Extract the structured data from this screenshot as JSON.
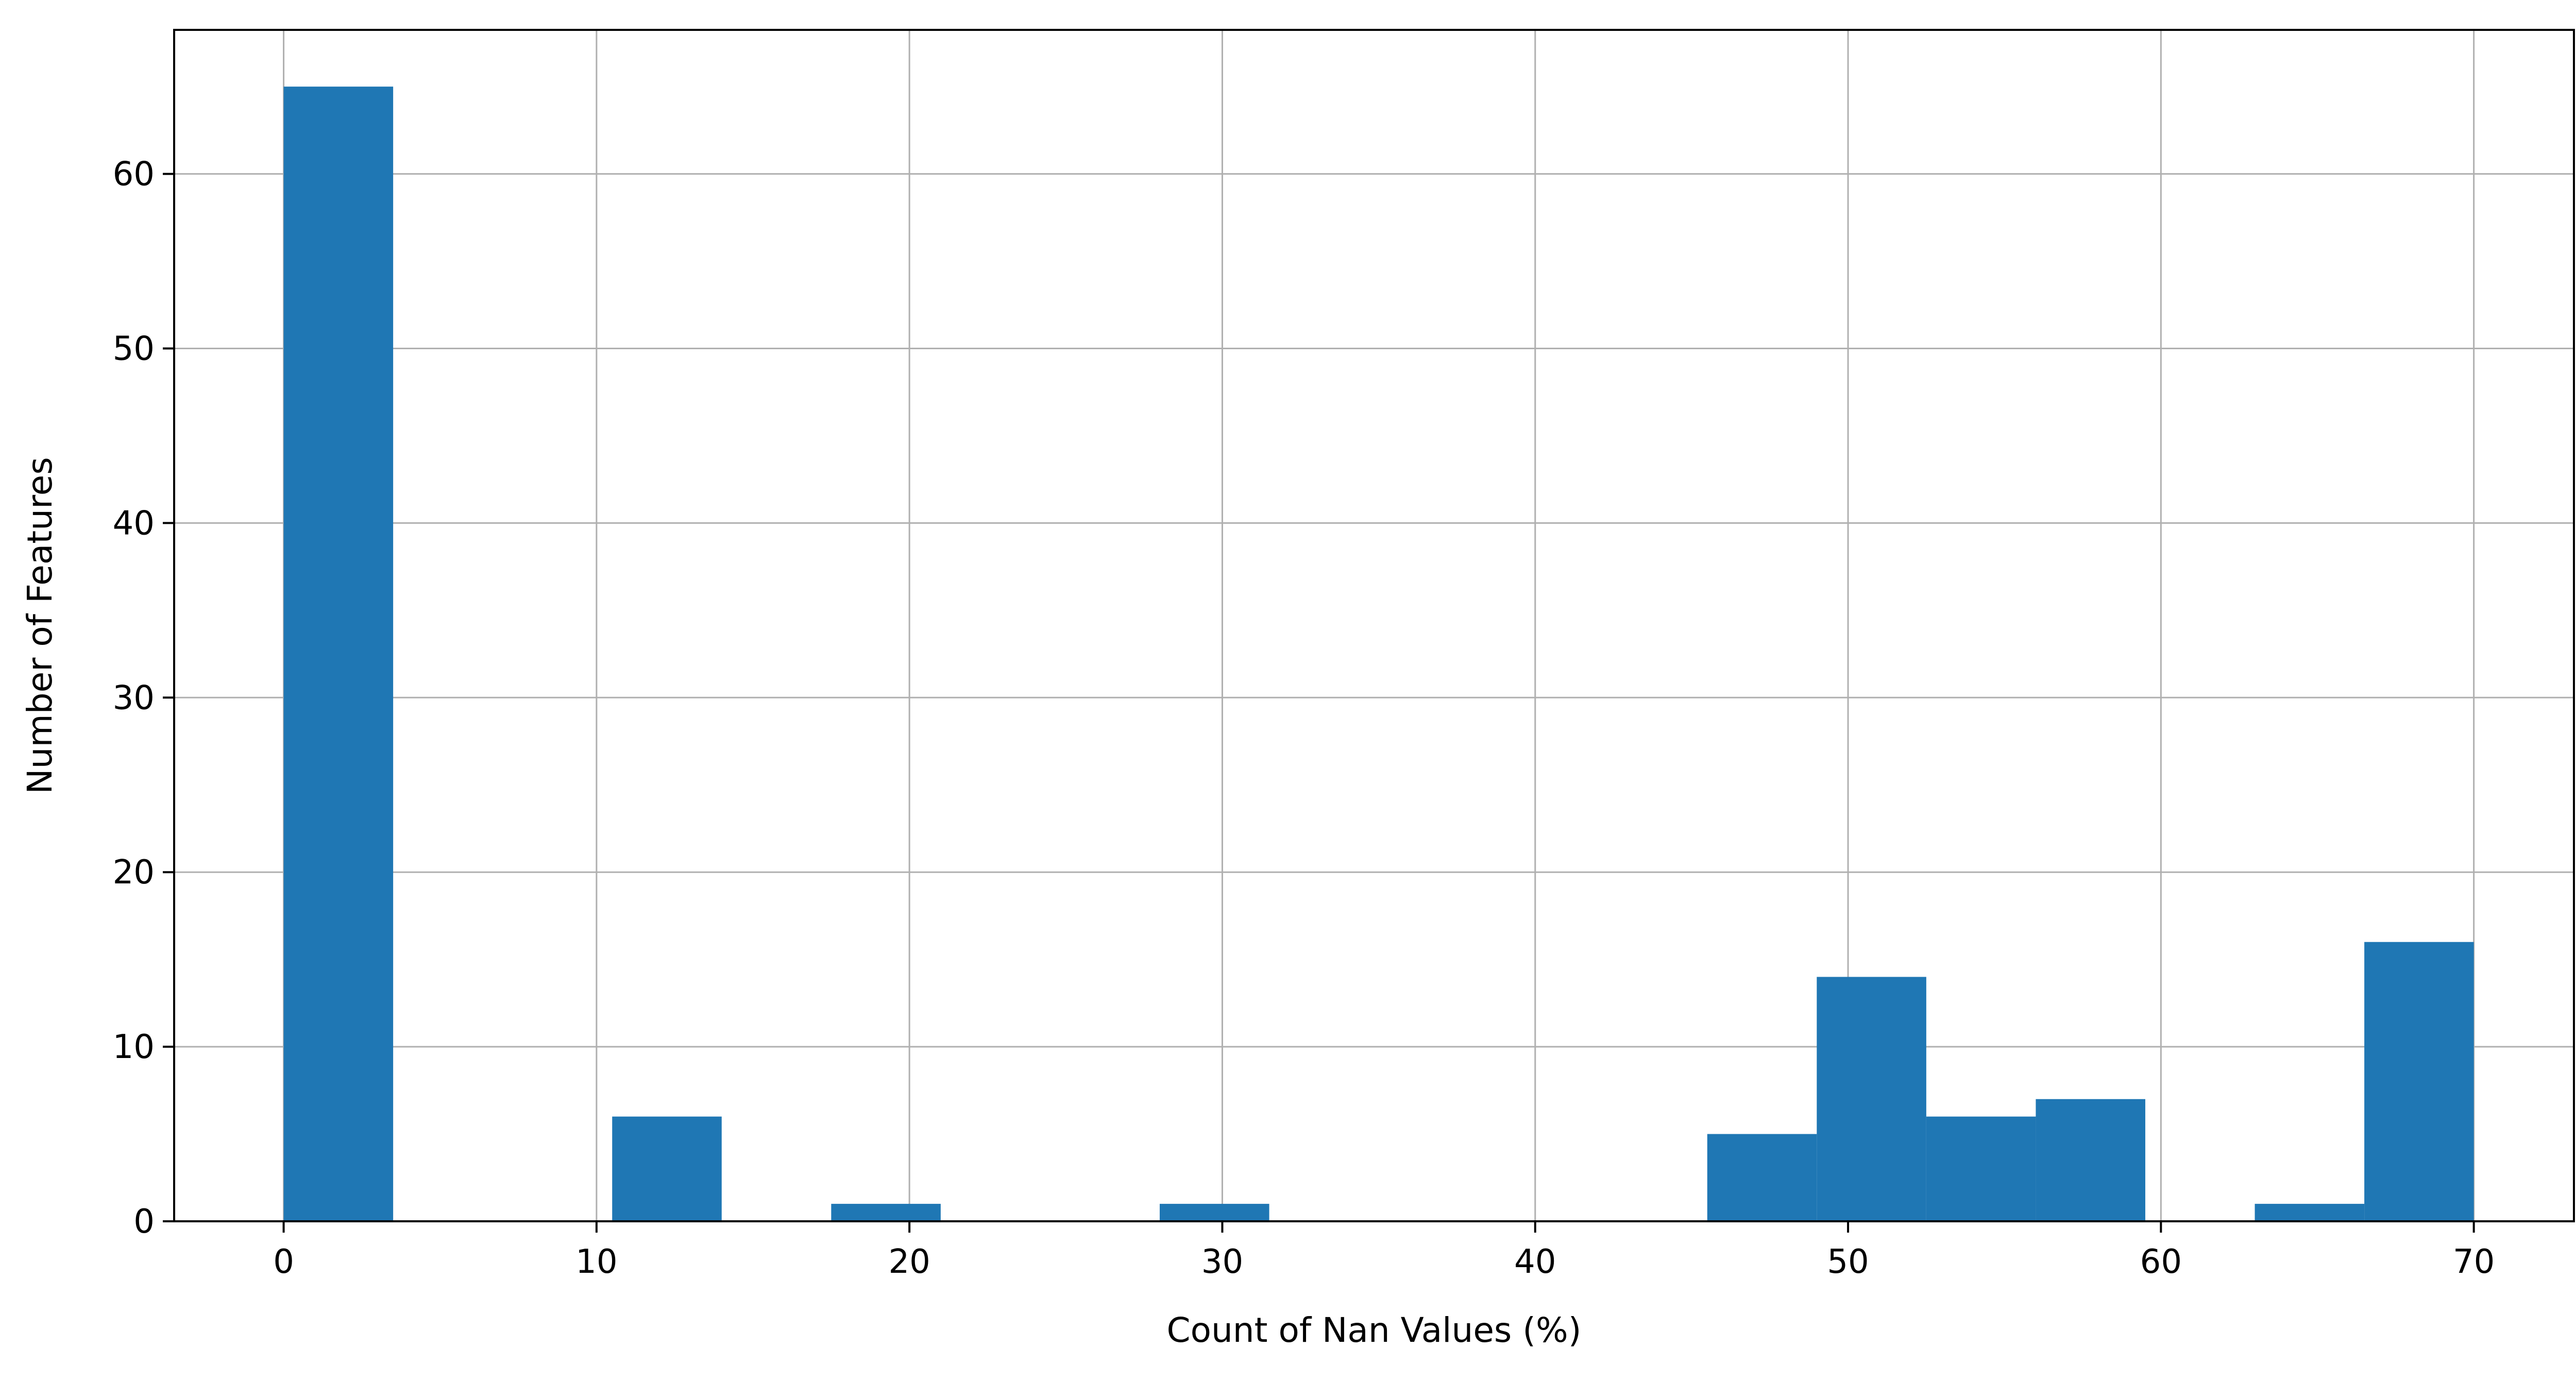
{
  "chart_data": {
    "type": "bar",
    "title": "",
    "xlabel": "Count of Nan Values (%)",
    "ylabel": "Number of Features",
    "xlim": [
      -3.5,
      73.2
    ],
    "ylim": [
      0,
      68.25
    ],
    "x_ticks": [
      0,
      10,
      20,
      30,
      40,
      50,
      60,
      70
    ],
    "y_ticks": [
      0,
      10,
      20,
      30,
      40,
      50,
      60
    ],
    "grid": true,
    "bar_color": "#1f77b4",
    "bin_width": 3.5,
    "bins": [
      {
        "start": 0.0,
        "end": 3.5,
        "count": 65
      },
      {
        "start": 3.5,
        "end": 7.0,
        "count": 0
      },
      {
        "start": 7.0,
        "end": 10.5,
        "count": 0
      },
      {
        "start": 10.5,
        "end": 14.0,
        "count": 6
      },
      {
        "start": 14.0,
        "end": 17.5,
        "count": 0
      },
      {
        "start": 17.5,
        "end": 21.0,
        "count": 1
      },
      {
        "start": 21.0,
        "end": 24.5,
        "count": 0
      },
      {
        "start": 24.5,
        "end": 28.0,
        "count": 0
      },
      {
        "start": 28.0,
        "end": 31.5,
        "count": 1
      },
      {
        "start": 31.5,
        "end": 35.0,
        "count": 0
      },
      {
        "start": 35.0,
        "end": 38.5,
        "count": 0
      },
      {
        "start": 38.5,
        "end": 42.0,
        "count": 0
      },
      {
        "start": 42.0,
        "end": 45.5,
        "count": 0
      },
      {
        "start": 45.5,
        "end": 49.0,
        "count": 5
      },
      {
        "start": 49.0,
        "end": 52.5,
        "count": 14
      },
      {
        "start": 52.5,
        "end": 56.0,
        "count": 6
      },
      {
        "start": 56.0,
        "end": 59.5,
        "count": 7
      },
      {
        "start": 59.5,
        "end": 63.0,
        "count": 0
      },
      {
        "start": 63.0,
        "end": 66.5,
        "count": 1
      },
      {
        "start": 66.5,
        "end": 70.0,
        "count": 16
      }
    ]
  }
}
